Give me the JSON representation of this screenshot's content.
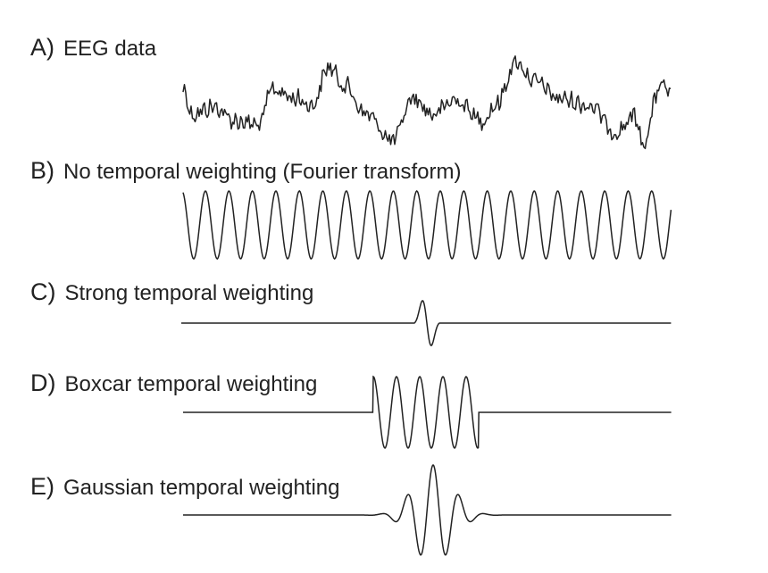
{
  "panels": [
    {
      "id": "A",
      "letter": "A)",
      "label": "EEG data",
      "kind": "eeg"
    },
    {
      "id": "B",
      "letter": "B)",
      "label": "No temporal weighting (Fourier transform)",
      "kind": "sine"
    },
    {
      "id": "C",
      "letter": "C)",
      "label": "Strong temporal weighting",
      "kind": "spike"
    },
    {
      "id": "D",
      "letter": "D)",
      "label": "Boxcar temporal weighting",
      "kind": "boxcar"
    },
    {
      "id": "E",
      "letter": "E)",
      "label": "Gaussian temporal weighting",
      "kind": "gaussian"
    }
  ],
  "style": {
    "line_color": "#222222",
    "background": "#ffffff"
  }
}
